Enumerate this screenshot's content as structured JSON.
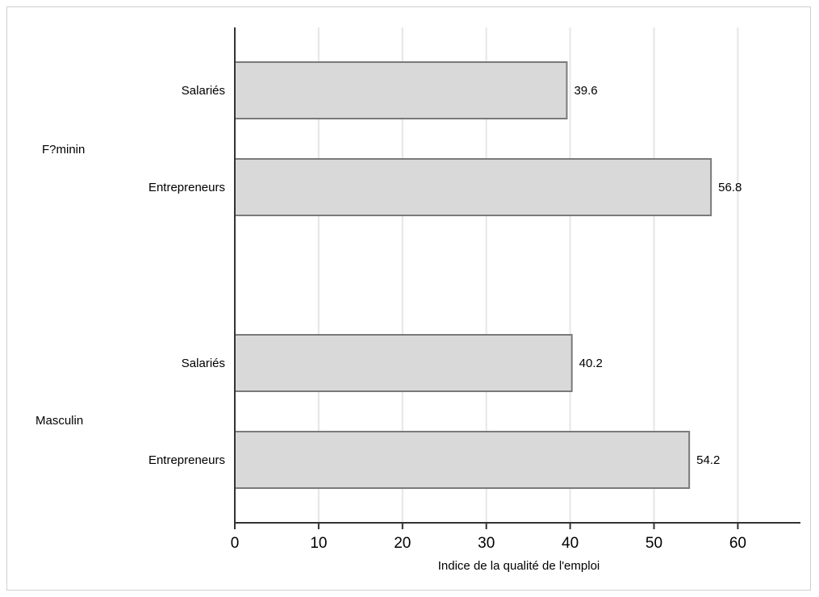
{
  "chart_data": {
    "type": "bar",
    "orientation": "horizontal",
    "title": "",
    "xlabel": "Indice de la qualité de l'emploi",
    "ylabel": "",
    "xlim": [
      0,
      67
    ],
    "xticks": [
      0,
      10,
      20,
      30,
      40,
      50,
      60
    ],
    "grid": true,
    "groups": [
      {
        "name": "F?minin",
        "bars": [
          {
            "label": "Salariés",
            "value": 39.6,
            "value_label": "39.6"
          },
          {
            "label": "Entrepreneurs",
            "value": 56.8,
            "value_label": "56.8"
          }
        ]
      },
      {
        "name": "Masculin",
        "bars": [
          {
            "label": "Salariés",
            "value": 40.2,
            "value_label": "40.2"
          },
          {
            "label": "Entrepreneurs",
            "value": 54.2,
            "value_label": "54.2"
          }
        ]
      }
    ],
    "colors": {
      "bar_fill": "#d9d9d9",
      "bar_stroke": "#7a7a7a",
      "grid": "#e6e6e6",
      "axis": "#333333"
    }
  }
}
